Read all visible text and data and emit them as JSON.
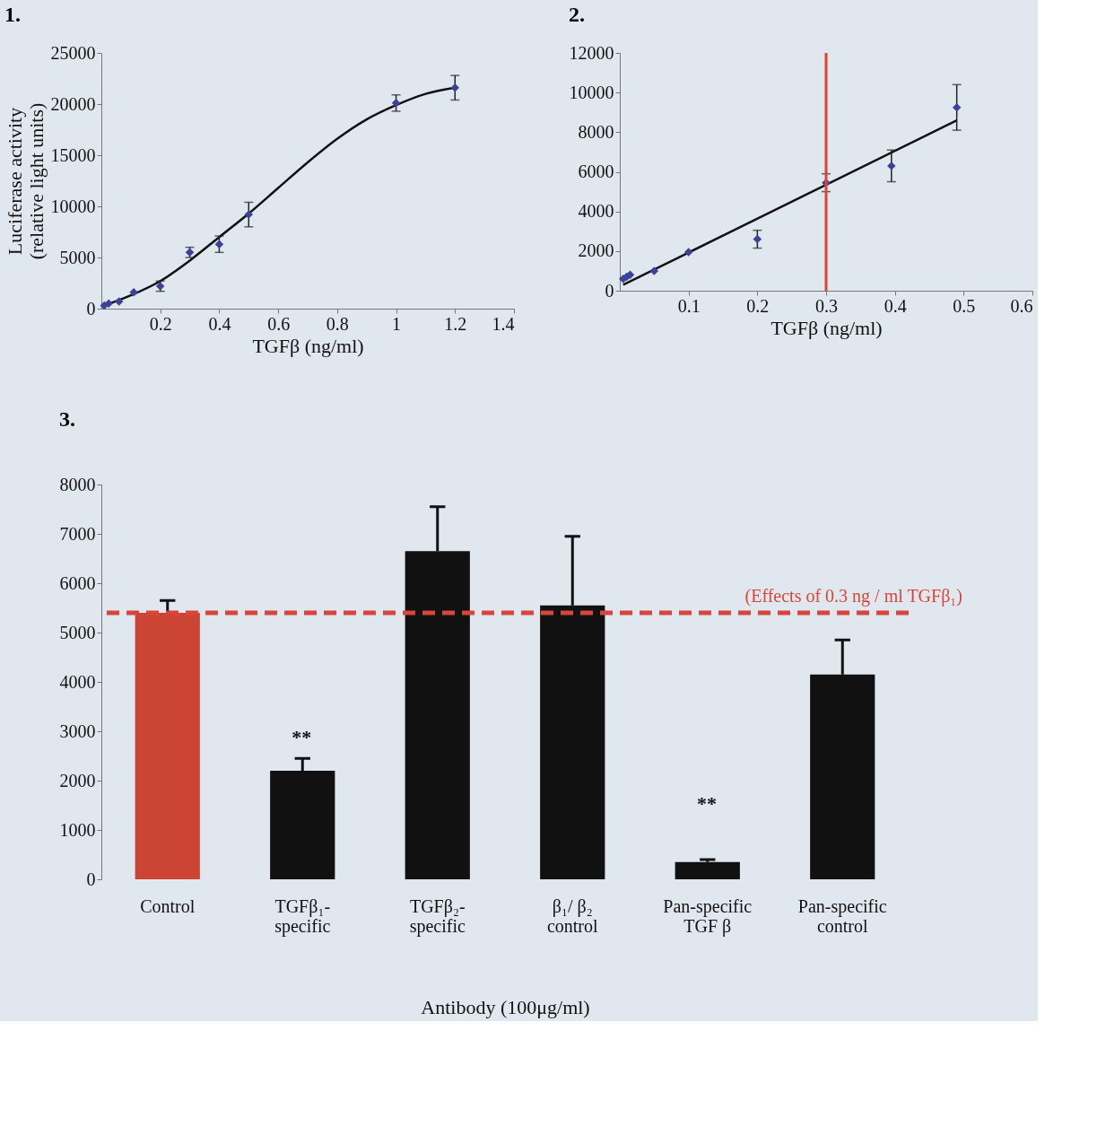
{
  "chart_data": [
    {
      "type": "scatter",
      "title": "1.",
      "xlabel": "TGFβ (ng/ml)",
      "ylabel": "Luciferase activity\n(relative light units)",
      "xlim": [
        0,
        1.4
      ],
      "xticks": [
        0.2,
        0.4,
        0.6,
        0.8,
        1,
        1.2,
        1.4
      ],
      "ylim": [
        0,
        25000
      ],
      "yticks": [
        0,
        5000,
        10000,
        15000,
        20000,
        25000
      ],
      "grid": false,
      "series": [
        {
          "type": "scatter",
          "marker": "diamond",
          "color": "#3b4299",
          "x": [
            0.01,
            0.025,
            0.06,
            0.11,
            0.2,
            0.3,
            0.4,
            0.5,
            1.0,
            1.2
          ],
          "values": [
            300,
            500,
            700,
            1600,
            2200,
            5500,
            6300,
            9200,
            20100,
            21600
          ],
          "errors": [
            null,
            null,
            null,
            null,
            500,
            500,
            800,
            1200,
            800,
            1200
          ]
        },
        {
          "type": "line",
          "marker": "none",
          "color": "#111111",
          "line_style": "solid",
          "x": [
            0,
            0.1,
            0.2,
            0.3,
            0.4,
            0.5,
            0.6,
            0.7,
            0.8,
            0.9,
            1.0,
            1.1,
            1.2
          ],
          "values": [
            200,
            1300,
            2700,
            4700,
            7000,
            9300,
            11800,
            14300,
            16600,
            18500,
            19900,
            21000,
            21600
          ]
        }
      ]
    },
    {
      "type": "scatter",
      "title": "2.",
      "xlabel": "TGFβ (ng/ml)",
      "xlim": [
        0,
        0.6
      ],
      "xticks": [
        0.1,
        0.2,
        0.3,
        0.4,
        0.5,
        0.6
      ],
      "ylim": [
        0,
        12000
      ],
      "yticks": [
        0,
        2000,
        4000,
        6000,
        8000,
        10000,
        12000
      ],
      "grid": false,
      "series": [
        {
          "type": "scatter",
          "marker": "diamond",
          "color": "#3b4299",
          "x": [
            0.005,
            0.01,
            0.015,
            0.05,
            0.1,
            0.2,
            0.3,
            0.395,
            0.49
          ],
          "values": [
            600,
            700,
            800,
            1000,
            1950,
            2600,
            5450,
            6300,
            9250
          ],
          "errors": [
            null,
            null,
            null,
            null,
            null,
            450,
            450,
            800,
            1150
          ]
        },
        {
          "type": "line",
          "marker": "none",
          "color": "#111111",
          "line_style": "solid",
          "x": [
            0.005,
            0.49
          ],
          "values": [
            300,
            8600
          ]
        }
      ],
      "ref_lines": [
        {
          "axis": "x",
          "value": 0.3,
          "color": "#e0442e",
          "line_style": "solid"
        }
      ]
    },
    {
      "type": "bar",
      "title": "3.",
      "xlabel": "Antibody (100μg/ml)",
      "ylim": [
        0,
        8000
      ],
      "yticks": [
        0,
        1000,
        2000,
        3000,
        4000,
        5000,
        6000,
        7000,
        8000
      ],
      "grid": false,
      "categories": [
        "Control",
        "TGFβ₁-\nspecific",
        "TGFβ₂-\nspecific",
        "β₁/ β₂\ncontrol",
        "Pan-specific\nTGF β",
        "Pan-specific\ncontrol"
      ],
      "values": [
        5400,
        2200,
        6650,
        5550,
        350,
        4150
      ],
      "colors": [
        "#cc4433",
        "#111111",
        "#111111",
        "#111111",
        "#111111",
        "#111111"
      ],
      "errors": [
        [
          5400,
          5650
        ],
        [
          2200,
          2450
        ],
        [
          6650,
          7550
        ],
        [
          5550,
          6950
        ],
        [
          350,
          400
        ],
        [
          4150,
          4850
        ]
      ],
      "ref_lines": [
        {
          "axis": "y",
          "value": 5400,
          "label": "(Effects of 0.3 ng / ml TGFβ₁)",
          "color": "#d9453a",
          "line_style": "dashed"
        }
      ],
      "annotations": [
        "**",
        "**"
      ]
    }
  ]
}
